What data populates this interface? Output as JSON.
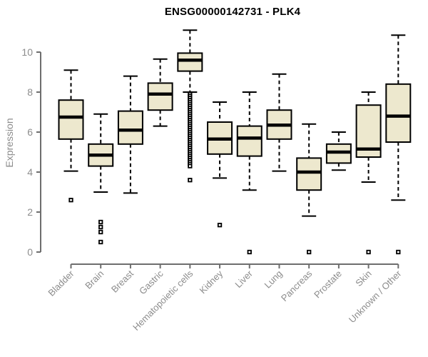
{
  "title": "ENSG00000142731 - PLK4",
  "colors": {
    "background": "#ffffff",
    "box_fill": "#ede8ce",
    "box_border": "#000000",
    "median": "#000000",
    "whisker": "#000000",
    "outlier_fill": "#ffffff",
    "outlier_border": "#000000",
    "axis_line": "#6e6e6e",
    "tick_label": "#8c8c8c",
    "axis_title": "#8c8c8c",
    "title_color": "#000000"
  },
  "chart_data": {
    "type": "boxplot",
    "title": "ENSG00000142731 - PLK4",
    "xlabel": "",
    "ylabel": "Expression",
    "ylim": [
      0,
      10
    ],
    "yticks": [
      0,
      2,
      4,
      6,
      8,
      10
    ],
    "grid": false,
    "legend": "none",
    "categories": [
      "Bladder",
      "Brain",
      "Breast",
      "Gastric",
      "Hematopoietic cells",
      "Kidney",
      "Liver",
      "Lung",
      "Pancreas",
      "Prostate",
      "Skin",
      "Unknown / Other"
    ],
    "series": [
      {
        "category": "Bladder",
        "whisker_low": 4.05,
        "q1": 5.65,
        "median": 6.75,
        "q3": 7.6,
        "whisker_high": 9.1,
        "outliers": [
          2.6
        ]
      },
      {
        "category": "Brain",
        "whisker_low": 3.0,
        "q1": 4.3,
        "median": 4.85,
        "q3": 5.4,
        "whisker_high": 6.9,
        "outliers": [
          1.5,
          1.25,
          1.0,
          0.5
        ]
      },
      {
        "category": "Breast",
        "whisker_low": 2.95,
        "q1": 5.4,
        "median": 6.1,
        "q3": 7.05,
        "whisker_high": 8.8,
        "outliers": []
      },
      {
        "category": "Gastric",
        "whisker_low": 6.3,
        "q1": 7.1,
        "median": 7.9,
        "q3": 8.45,
        "whisker_high": 9.65,
        "outliers": []
      },
      {
        "category": "Hematopoietic cells",
        "whisker_low": 8.0,
        "q1": 9.05,
        "median": 9.6,
        "q3": 9.95,
        "whisker_high": 11.1,
        "outliers": [
          7.9,
          7.8,
          7.7,
          7.6,
          7.5,
          7.4,
          7.3,
          7.2,
          7.1,
          7.0,
          6.9,
          6.8,
          6.7,
          6.6,
          6.5,
          6.4,
          6.3,
          6.2,
          6.1,
          6.0,
          5.9,
          5.8,
          5.7,
          5.6,
          5.5,
          5.4,
          5.3,
          5.2,
          5.1,
          5.0,
          4.9,
          4.8,
          4.7,
          4.6,
          4.5,
          4.4,
          4.3,
          3.6
        ]
      },
      {
        "category": "Kidney",
        "whisker_low": 3.7,
        "q1": 4.9,
        "median": 5.65,
        "q3": 6.5,
        "whisker_high": 7.5,
        "outliers": [
          1.35
        ]
      },
      {
        "category": "Liver",
        "whisker_low": 3.1,
        "q1": 4.8,
        "median": 5.7,
        "q3": 6.3,
        "whisker_high": 8.0,
        "outliers": [
          0.0
        ]
      },
      {
        "category": "Lung",
        "whisker_low": 4.05,
        "q1": 5.65,
        "median": 6.35,
        "q3": 7.1,
        "whisker_high": 8.9,
        "outliers": []
      },
      {
        "category": "Pancreas",
        "whisker_low": 1.8,
        "q1": 3.1,
        "median": 4.0,
        "q3": 4.7,
        "whisker_high": 6.4,
        "outliers": [
          0.0
        ]
      },
      {
        "category": "Prostate",
        "whisker_low": 4.1,
        "q1": 4.45,
        "median": 5.0,
        "q3": 5.4,
        "whisker_high": 6.0,
        "outliers": []
      },
      {
        "category": "Skin",
        "whisker_low": 3.5,
        "q1": 4.75,
        "median": 5.15,
        "q3": 7.35,
        "whisker_high": 8.0,
        "outliers": [
          0.0
        ]
      },
      {
        "category": "Unknown / Other",
        "whisker_low": 2.6,
        "q1": 5.5,
        "median": 6.8,
        "q3": 8.4,
        "whisker_high": 10.85,
        "outliers": [
          0.0
        ]
      }
    ]
  }
}
